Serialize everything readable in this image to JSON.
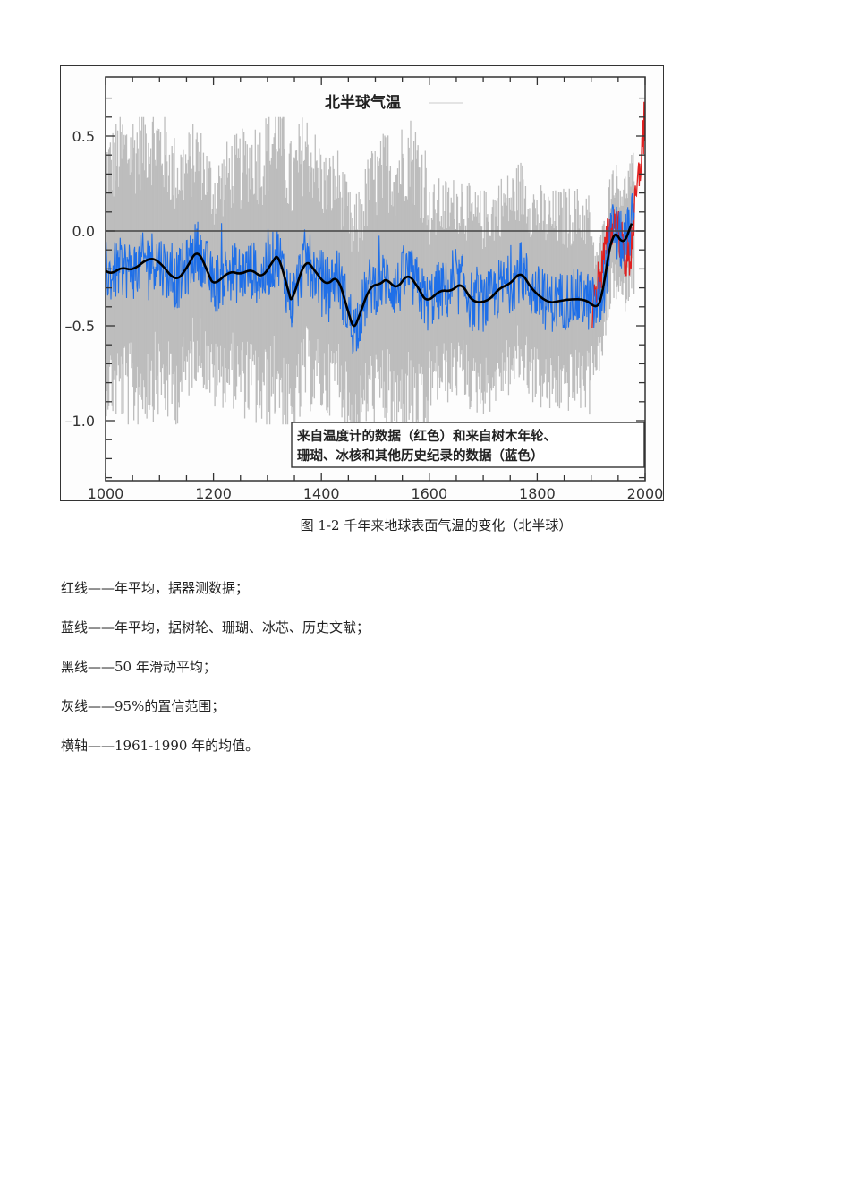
{
  "figure": {
    "caption": "图 1-2 千年来地球表面气温的变化（北半球）"
  },
  "chart_data": {
    "type": "line",
    "title": "北半球气温",
    "xlabel": "",
    "ylabel": "",
    "xlim": [
      1000,
      2000
    ],
    "ylim": [
      -1.3,
      0.8
    ],
    "x_ticks": [
      1000,
      1200,
      1400,
      1600,
      1800,
      2000
    ],
    "x_tick_labels": [
      "1000",
      "1200",
      "1400",
      "1600",
      "1800",
      "2000"
    ],
    "y_ticks": [
      0.5,
      0.0,
      -0.5,
      -1.0
    ],
    "y_tick_labels": [
      "0.5",
      "0.0",
      "–0.5",
      "–1.0"
    ],
    "grid": false,
    "reference_line": {
      "y": 0.0,
      "label": "1961-1990 mean"
    },
    "annotation": {
      "line1": "来自温度计的数据（红色）和来自树木年轮、",
      "line2": "珊瑚、冰核和其他历史纪录的数据（蓝色）"
    },
    "series": [
      {
        "name": "50年滑动平均",
        "color": "#000000",
        "x": [
          1000,
          1010,
          1030,
          1050,
          1080,
          1100,
          1130,
          1150,
          1170,
          1190,
          1200,
          1230,
          1250,
          1270,
          1290,
          1310,
          1320,
          1340,
          1345,
          1370,
          1390,
          1410,
          1430,
          1450,
          1460,
          1470,
          1490,
          1510,
          1520,
          1540,
          1560,
          1580,
          1595,
          1620,
          1640,
          1660,
          1680,
          1710,
          1730,
          1750,
          1770,
          1790,
          1820,
          1840,
          1860,
          1890,
          1910,
          1920,
          1940,
          1960,
          1975
        ],
        "values": [
          -0.21,
          -0.23,
          -0.19,
          -0.21,
          -0.14,
          -0.16,
          -0.27,
          -0.2,
          -0.09,
          -0.22,
          -0.29,
          -0.21,
          -0.23,
          -0.2,
          -0.25,
          -0.16,
          -0.12,
          -0.33,
          -0.38,
          -0.14,
          -0.22,
          -0.29,
          -0.23,
          -0.43,
          -0.52,
          -0.45,
          -0.29,
          -0.28,
          -0.25,
          -0.31,
          -0.22,
          -0.3,
          -0.38,
          -0.31,
          -0.32,
          -0.27,
          -0.38,
          -0.37,
          -0.3,
          -0.28,
          -0.21,
          -0.31,
          -0.38,
          -0.37,
          -0.36,
          -0.36,
          -0.41,
          -0.35,
          0.02,
          -0.08,
          0.04
        ]
      },
      {
        "name": "蓝线 代用数据年平均（树轮、珊瑚、冰芯、历史文献）",
        "color": "#1f6fe8",
        "x_range": [
          1000,
          1980
        ],
        "approx_range": [
          -0.62,
          0.12
        ]
      },
      {
        "name": "红线 器测数据年平均",
        "color": "#e02020",
        "x_range": [
          1902,
          1999
        ],
        "approx_range": [
          -0.55,
          0.7
        ]
      },
      {
        "name": "灰线 95%置信范围",
        "color": "#b8b8b8",
        "x_range": [
          1000,
          1980
        ],
        "upper_approx": [
          0.35,
          0.45,
          0.5,
          0.55,
          0.35,
          0.2,
          0.1,
          0.15,
          0.2,
          0.25
        ],
        "lower_approx": [
          -0.8,
          -0.8,
          -0.85,
          -0.95,
          -0.95,
          -0.6,
          -0.6,
          -0.75,
          -0.7,
          -0.75
        ]
      }
    ]
  },
  "notes": [
    "红线——年平均，据器测数据；",
    "蓝线——年平均，据树轮、珊瑚、冰芯、历史文献；",
    "黑线——50 年滑动平均；",
    "灰线——95%的置信范围；",
    "横轴——1961-1990 年的均值。"
  ],
  "colors": {
    "gray_band": "#bdbdbd",
    "proxy_blue": "#1f6fe8",
    "instrument_red": "#e02020",
    "smooth_black": "#000000"
  }
}
